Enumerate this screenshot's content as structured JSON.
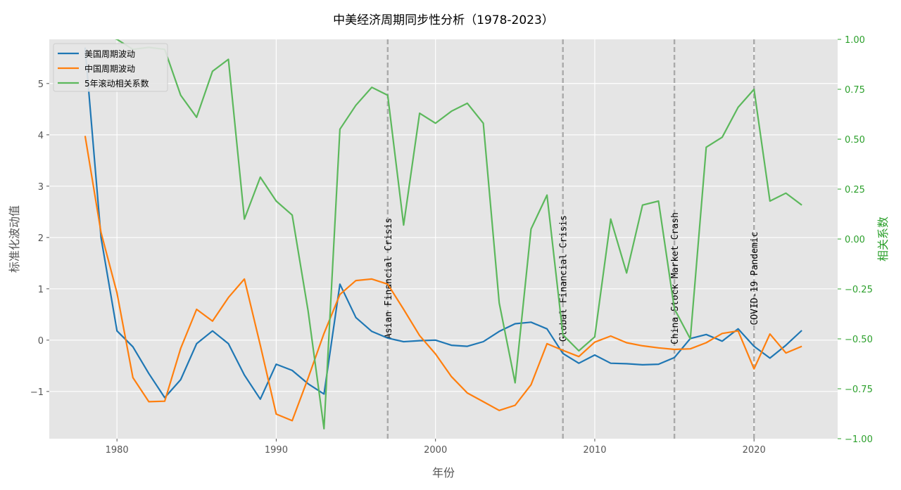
{
  "chart_data": {
    "type": "line",
    "title": "中美经济周期同步性分析（1978-2023）",
    "xlabel": "年份",
    "ylabel": "标准化波动值",
    "y2label": "相关系数",
    "xlim": [
      1975.75,
      2025.25
    ],
    "ylim": [
      -1.92,
      5.86
    ],
    "y2lim": [
      -1.0,
      1.0
    ],
    "xticks": [
      1980,
      1990,
      2000,
      2010,
      2020
    ],
    "yticks": [
      -1,
      0,
      1,
      2,
      3,
      4,
      5
    ],
    "y2ticks": [
      -1.0,
      -0.75,
      -0.5,
      -0.25,
      0.0,
      0.25,
      0.5,
      0.75,
      1.0
    ],
    "y2tick_labels": [
      "−1.00",
      "−0.75",
      "−0.50",
      "−0.25",
      "0.00",
      "0.25",
      "0.50",
      "0.75",
      "1.00"
    ],
    "ytick_labels": [
      "−1",
      "0",
      "1",
      "2",
      "3",
      "4",
      "5"
    ],
    "grid": true,
    "legend_position": "top-left",
    "series": [
      {
        "name": "美国周期波动",
        "axis": "left",
        "color": "#1f77b4",
        "x": [
          1978,
          1979,
          1980,
          1981,
          1982,
          1983,
          1984,
          1985,
          1986,
          1987,
          1988,
          1989,
          1990,
          1991,
          1992,
          1993,
          1994,
          1995,
          1996,
          1997,
          1998,
          1999,
          2000,
          2001,
          2002,
          2003,
          2004,
          2005,
          2006,
          2007,
          2008,
          2009,
          2010,
          2011,
          2012,
          2013,
          2014,
          2015,
          2016,
          2017,
          2018,
          2019,
          2020,
          2021,
          2022,
          2023
        ],
        "values": [
          5.7,
          2.0,
          0.18,
          -0.13,
          -0.65,
          -1.12,
          -0.77,
          -0.07,
          0.18,
          -0.07,
          -0.68,
          -1.15,
          -0.47,
          -0.59,
          -0.85,
          -1.05,
          1.09,
          0.44,
          0.17,
          0.04,
          -0.03,
          -0.01,
          0.0,
          -0.1,
          -0.12,
          -0.03,
          0.17,
          0.32,
          0.35,
          0.22,
          -0.26,
          -0.45,
          -0.29,
          -0.45,
          -0.46,
          -0.48,
          -0.47,
          -0.34,
          0.03,
          0.11,
          -0.02,
          0.22,
          -0.12,
          -0.35,
          -0.1,
          0.19
        ]
      },
      {
        "name": "中国周期波动",
        "axis": "left",
        "color": "#ff7f0e",
        "x": [
          1978,
          1979,
          1980,
          1981,
          1982,
          1983,
          1984,
          1985,
          1986,
          1987,
          1988,
          1989,
          1990,
          1991,
          1992,
          1993,
          1994,
          1995,
          1996,
          1997,
          1998,
          1999,
          2000,
          2001,
          2002,
          2003,
          2004,
          2005,
          2006,
          2007,
          2008,
          2009,
          2010,
          2011,
          2012,
          2013,
          2014,
          2015,
          2016,
          2017,
          2018,
          2019,
          2020,
          2021,
          2022,
          2023
        ],
        "values": [
          3.98,
          2.1,
          0.92,
          -0.73,
          -1.2,
          -1.19,
          -0.16,
          0.6,
          0.37,
          0.83,
          1.19,
          -0.1,
          -1.44,
          -1.57,
          -0.74,
          0.13,
          0.89,
          1.16,
          1.19,
          1.09,
          0.6,
          0.09,
          -0.27,
          -0.71,
          -1.03,
          -1.2,
          -1.37,
          -1.27,
          -0.87,
          -0.07,
          -0.2,
          -0.32,
          -0.04,
          0.08,
          -0.05,
          -0.11,
          -0.15,
          -0.18,
          -0.17,
          -0.05,
          0.13,
          0.18,
          -0.56,
          0.12,
          -0.25,
          -0.12
        ]
      },
      {
        "name": "5年滚动相关系数",
        "axis": "right",
        "color": "#5cb85c",
        "x": [
          1979,
          1980,
          1981,
          1982,
          1983,
          1984,
          1985,
          1986,
          1987,
          1988,
          1989,
          1990,
          1991,
          1992,
          1993,
          1994,
          1995,
          1996,
          1997,
          1998,
          1999,
          2000,
          2001,
          2002,
          2003,
          2004,
          2005,
          2006,
          2007,
          2008,
          2009,
          2010,
          2011,
          2012,
          2013,
          2014,
          2015,
          2016,
          2017,
          2018,
          2019,
          2020,
          2021,
          2022,
          2023
        ],
        "values": [
          1.03,
          1.0,
          0.95,
          0.96,
          0.95,
          0.72,
          0.61,
          0.84,
          0.9,
          0.1,
          0.31,
          0.19,
          0.12,
          -0.36,
          -0.95,
          0.55,
          0.67,
          0.76,
          0.72,
          0.07,
          0.63,
          0.58,
          0.64,
          0.68,
          0.58,
          -0.32,
          -0.72,
          0.05,
          0.22,
          -0.48,
          -0.56,
          -0.49,
          0.1,
          -0.17,
          0.17,
          0.19,
          -0.35,
          -0.5,
          0.46,
          0.51,
          0.66,
          0.75,
          0.19,
          0.23,
          0.17
        ]
      }
    ],
    "events": [
      {
        "year": 1997,
        "label": "Asian Financial Crisis"
      },
      {
        "year": 2008,
        "label": "Global Financial Crisis"
      },
      {
        "year": 2015,
        "label": "China Stock Market Crash"
      },
      {
        "year": 2020,
        "label": "COVID-19 Pandemic"
      }
    ],
    "event_color": "#aaaaaa"
  }
}
